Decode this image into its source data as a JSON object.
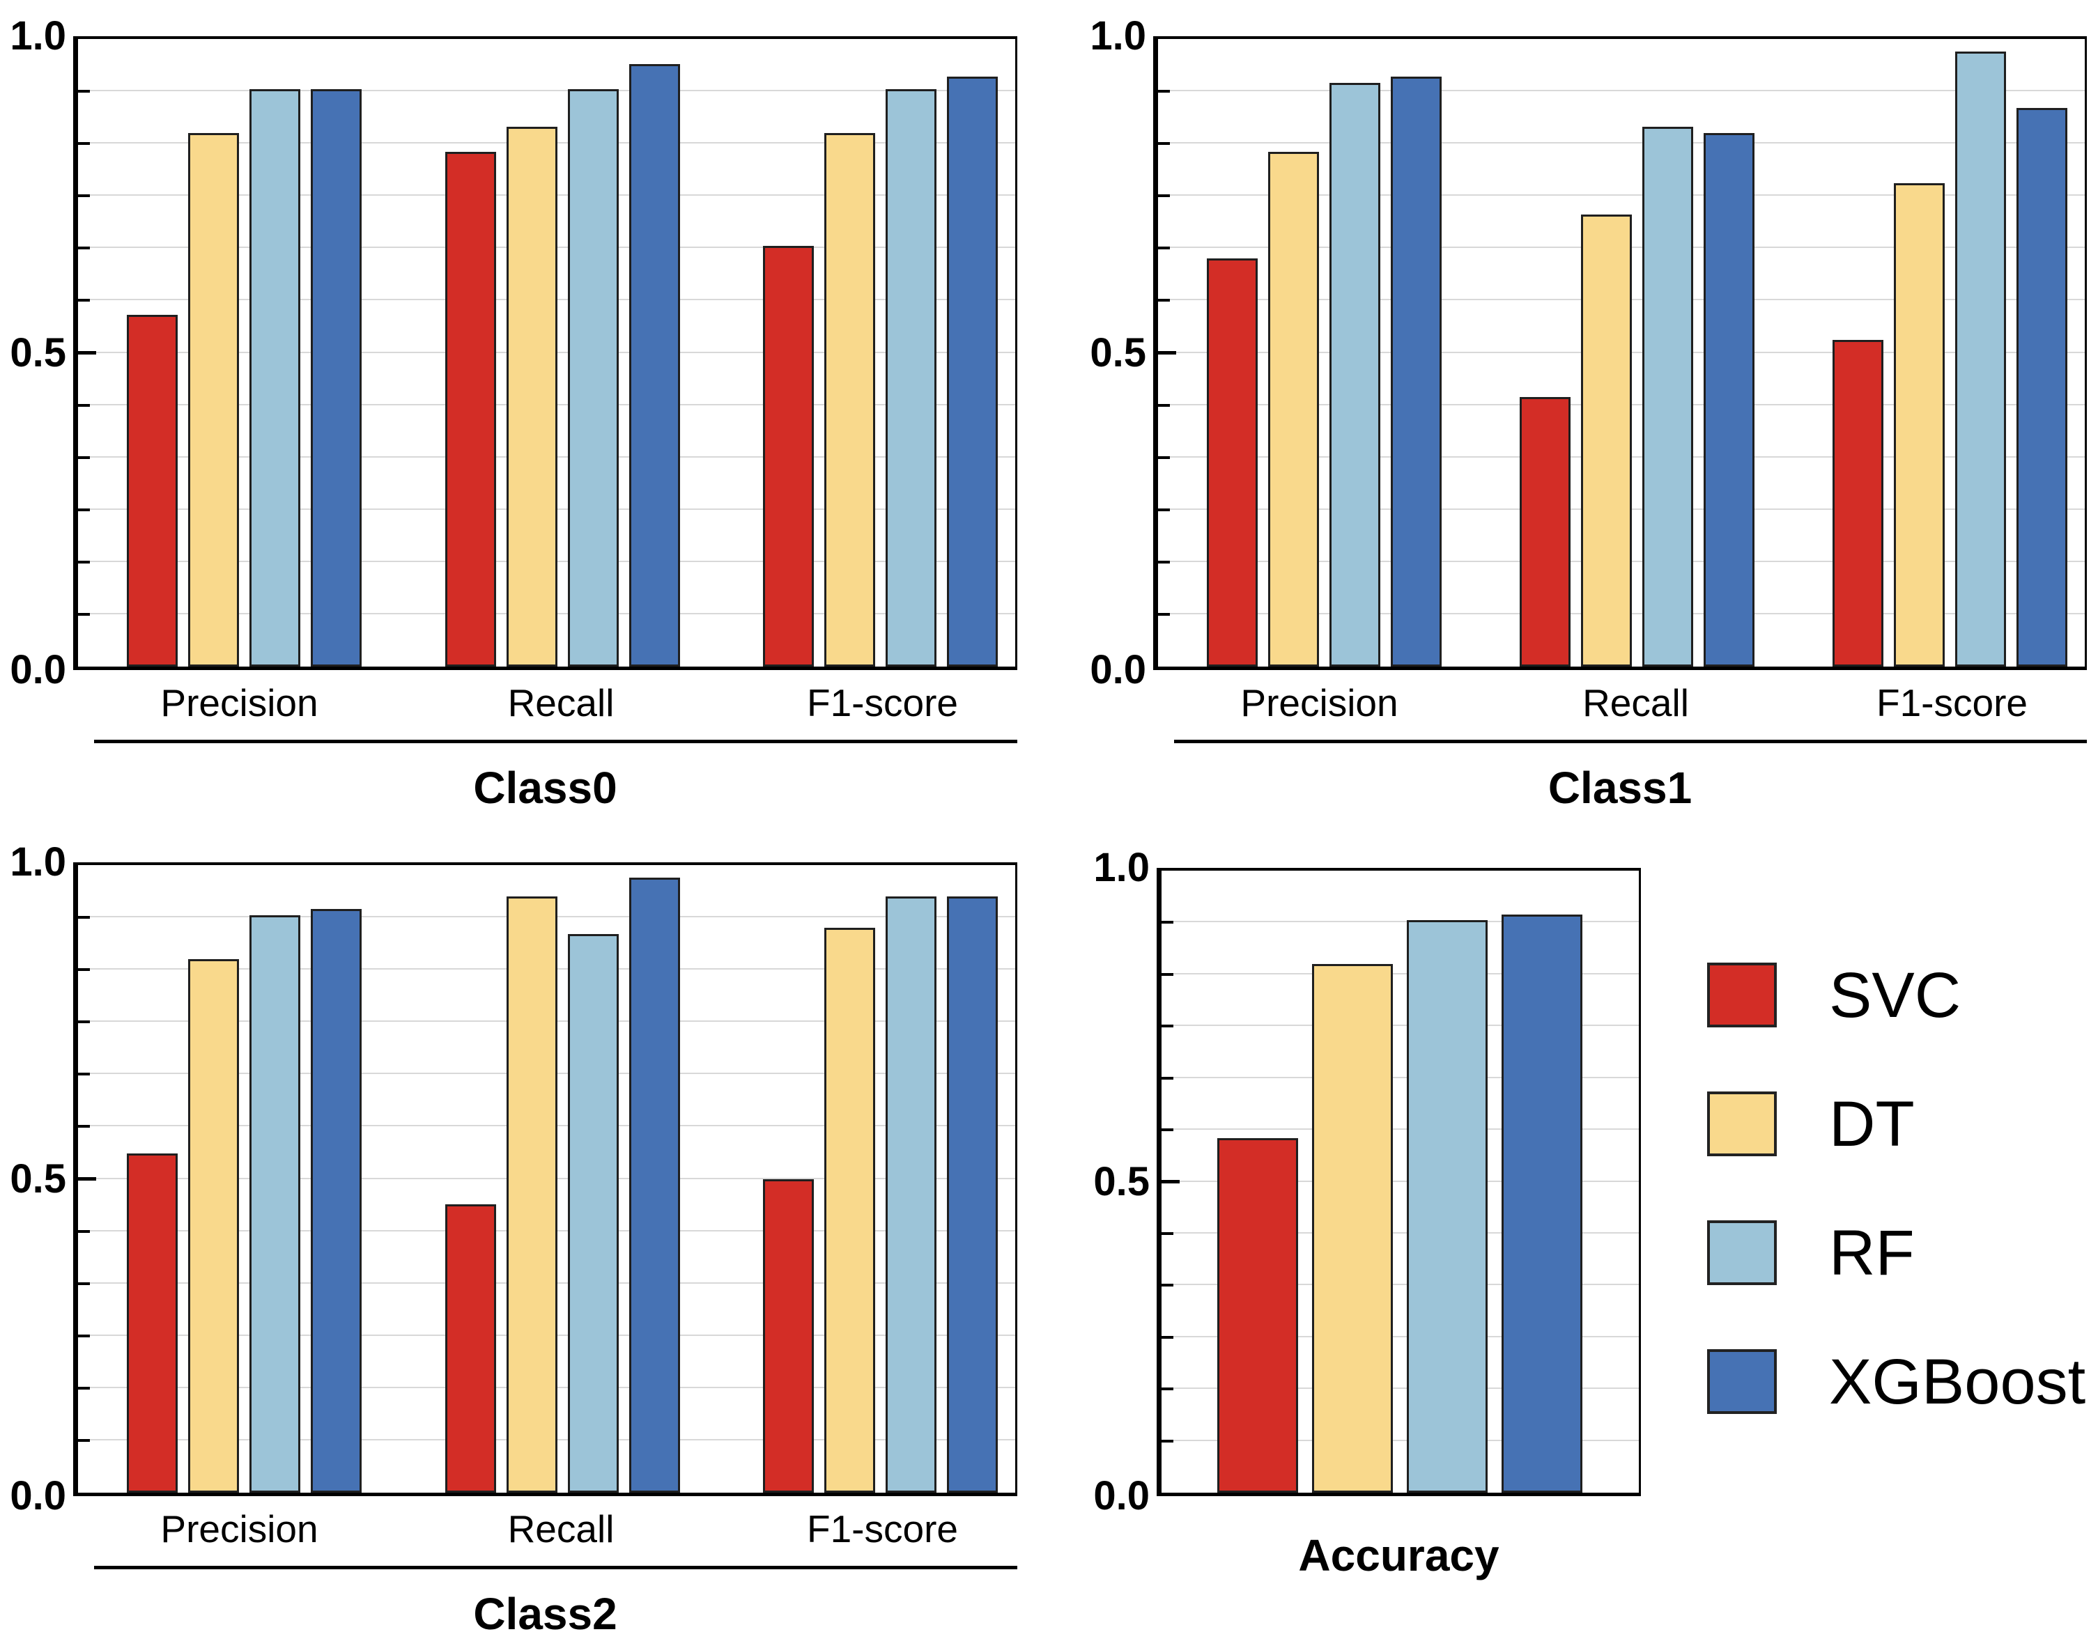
{
  "figure": {
    "description": "Grouped bar charts comparing classifier performance per class and overall accuracy",
    "background": "#ffffff",
    "series_names": [
      "SVC",
      "DT",
      "RF",
      "XGBoost"
    ],
    "colors": {
      "SVC": "#d32d26",
      "DT": "#f9d98c",
      "RF": "#9cc4d8",
      "XGBoost": "#4672b4",
      "bar_border": "#1f1f1f",
      "grid": "#d8d8d8",
      "axis": "#000000",
      "text": "#000000"
    }
  },
  "chart_data": [
    {
      "type": "bar",
      "title": "Class0",
      "categories": [
        "Precision",
        "Recall",
        "F1-score"
      ],
      "series": [
        {
          "name": "SVC",
          "values": [
            0.56,
            0.82,
            0.67
          ]
        },
        {
          "name": "DT",
          "values": [
            0.85,
            0.86,
            0.85
          ]
        },
        {
          "name": "RF",
          "values": [
            0.92,
            0.92,
            0.92
          ]
        },
        {
          "name": "XGBoost",
          "values": [
            0.92,
            0.96,
            0.94
          ]
        }
      ],
      "ylim": [
        0.0,
        1.0
      ],
      "yticks": [
        "0.0",
        "0.5",
        "1.0"
      ],
      "grid": "horizontal minor lines, 1/12 spacing",
      "legend_position": "none"
    },
    {
      "type": "bar",
      "title": "Class1",
      "categories": [
        "Precision",
        "Recall",
        "F1-score"
      ],
      "series": [
        {
          "name": "SVC",
          "values": [
            0.65,
            0.43,
            0.52
          ]
        },
        {
          "name": "DT",
          "values": [
            0.82,
            0.72,
            0.77
          ]
        },
        {
          "name": "RF",
          "values": [
            0.93,
            0.86,
            0.98
          ]
        },
        {
          "name": "XGBoost",
          "values": [
            0.94,
            0.85,
            0.89
          ]
        }
      ],
      "ylim": [
        0.0,
        1.0
      ],
      "yticks": [
        "0.0",
        "0.5",
        "1.0"
      ],
      "grid": "horizontal minor lines, 1/12 spacing",
      "legend_position": "none"
    },
    {
      "type": "bar",
      "title": "Class2",
      "categories": [
        "Precision",
        "Recall",
        "F1-score"
      ],
      "series": [
        {
          "name": "SVC",
          "values": [
            0.54,
            0.46,
            0.5
          ]
        },
        {
          "name": "DT",
          "values": [
            0.85,
            0.95,
            0.9
          ]
        },
        {
          "name": "RF",
          "values": [
            0.92,
            0.89,
            0.95
          ]
        },
        {
          "name": "XGBoost",
          "values": [
            0.93,
            0.98,
            0.95
          ]
        }
      ],
      "ylim": [
        0.0,
        1.0
      ],
      "yticks": [
        "0.0",
        "0.5",
        "1.0"
      ],
      "grid": "horizontal minor lines, 1/12 spacing",
      "legend_position": "none"
    },
    {
      "type": "bar",
      "title": "Accuracy",
      "categories": [
        "Accuracy"
      ],
      "series": [
        {
          "name": "SVC",
          "values": [
            0.57
          ]
        },
        {
          "name": "DT",
          "values": [
            0.85
          ]
        },
        {
          "name": "RF",
          "values": [
            0.92
          ]
        },
        {
          "name": "XGBoost",
          "values": [
            0.93
          ]
        }
      ],
      "ylim": [
        0.0,
        1.0
      ],
      "yticks": [
        "0.0",
        "0.5",
        "1.0"
      ],
      "grid": "horizontal minor lines, 1/12 spacing",
      "legend_position": "right"
    }
  ],
  "legend": {
    "entries": [
      {
        "label": "SVC"
      },
      {
        "label": "DT"
      },
      {
        "label": "RF"
      },
      {
        "label": "XGBoost"
      }
    ]
  }
}
